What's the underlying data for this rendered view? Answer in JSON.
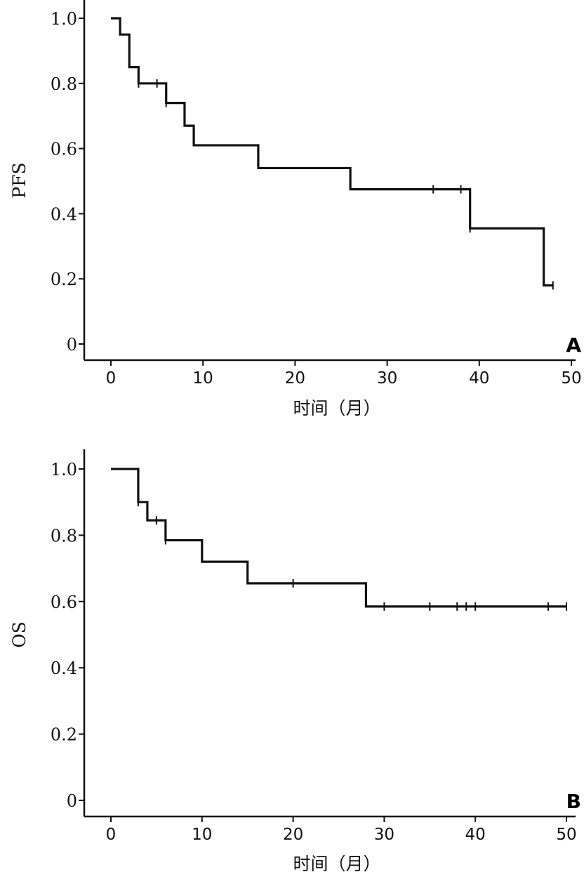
{
  "chart_data": [
    {
      "type": "line",
      "subtype": "kaplan-meier-step",
      "panel_label": "A",
      "xlabel": "时间（月）",
      "ylabel": "PFS",
      "xlim": [
        0,
        50
      ],
      "ylim": [
        0,
        1.0
      ],
      "x_ticks": [
        "0",
        "10",
        "20",
        "30",
        "40",
        "50"
      ],
      "y_ticks": [
        "0",
        "0.2",
        "0.4",
        "0.6",
        "0.8",
        "1.0"
      ],
      "grid": false,
      "steps": [
        {
          "x": 0,
          "y": 1.0
        },
        {
          "x": 1,
          "y": 0.95
        },
        {
          "x": 2,
          "y": 0.85
        },
        {
          "x": 3,
          "y": 0.8
        },
        {
          "x": 6,
          "y": 0.74
        },
        {
          "x": 8,
          "y": 0.67
        },
        {
          "x": 9,
          "y": 0.61
        },
        {
          "x": 16,
          "y": 0.54
        },
        {
          "x": 26,
          "y": 0.475
        },
        {
          "x": 39,
          "y": 0.355
        },
        {
          "x": 47,
          "y": 0.18
        }
      ],
      "end_x": 48,
      "censored": [
        {
          "x": 3,
          "y": 0.8
        },
        {
          "x": 5,
          "y": 0.8
        },
        {
          "x": 6,
          "y": 0.74
        },
        {
          "x": 35,
          "y": 0.475
        },
        {
          "x": 38,
          "y": 0.475
        },
        {
          "x": 39,
          "y": 0.355
        },
        {
          "x": 48,
          "y": 0.18
        }
      ]
    },
    {
      "type": "line",
      "subtype": "kaplan-meier-step",
      "panel_label": "B",
      "xlabel": "时间（月）",
      "ylabel": "OS",
      "xlim": [
        0,
        50
      ],
      "ylim": [
        0,
        1.0
      ],
      "x_ticks": [
        "0",
        "10",
        "20",
        "30",
        "40",
        "50"
      ],
      "y_ticks": [
        "0",
        "0.2",
        "0.4",
        "0.6",
        "0.8",
        "1.0"
      ],
      "grid": false,
      "steps": [
        {
          "x": 0,
          "y": 1.0
        },
        {
          "x": 3,
          "y": 0.9
        },
        {
          "x": 4,
          "y": 0.845
        },
        {
          "x": 6,
          "y": 0.785
        },
        {
          "x": 10,
          "y": 0.72
        },
        {
          "x": 15,
          "y": 0.655
        },
        {
          "x": 28,
          "y": 0.585
        }
      ],
      "end_x": 50,
      "censored": [
        {
          "x": 3,
          "y": 0.9
        },
        {
          "x": 5,
          "y": 0.845
        },
        {
          "x": 6,
          "y": 0.785
        },
        {
          "x": 20,
          "y": 0.655
        },
        {
          "x": 30,
          "y": 0.585
        },
        {
          "x": 35,
          "y": 0.585
        },
        {
          "x": 38,
          "y": 0.585
        },
        {
          "x": 39,
          "y": 0.585
        },
        {
          "x": 40,
          "y": 0.585
        },
        {
          "x": 48,
          "y": 0.585
        },
        {
          "x": 50,
          "y": 0.585
        }
      ]
    }
  ]
}
